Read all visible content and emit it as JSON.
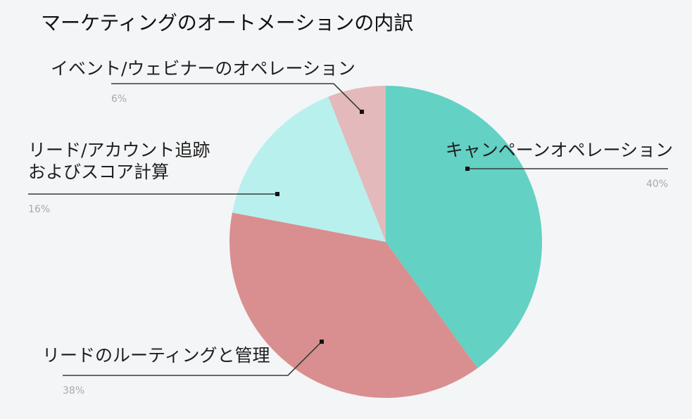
{
  "chart_data": {
    "type": "pie",
    "title": "マーケティングのオートメーションの内訳",
    "start_angle_deg": 0,
    "direction": "clockwise",
    "slices": [
      {
        "key": "campaign",
        "label_lines": [
          "キャンペーンオペレーション"
        ],
        "value": 40,
        "value_label": "40%",
        "color": "#63d1c4"
      },
      {
        "key": "routing",
        "label_lines": [
          "リードのルーティングと管理"
        ],
        "value": 38,
        "value_label": "38%",
        "color": "#d98f8f"
      },
      {
        "key": "tracking",
        "label_lines": [
          "リード/アカウント追跡",
          "およびスコア計算"
        ],
        "value": 16,
        "value_label": "16%",
        "color": "#b8f0ee"
      },
      {
        "key": "events",
        "label_lines": [
          "イベント/ウェビナーのオペレーション"
        ],
        "value": 6,
        "value_label": "6%",
        "color": "#e3b9bb"
      }
    ]
  }
}
